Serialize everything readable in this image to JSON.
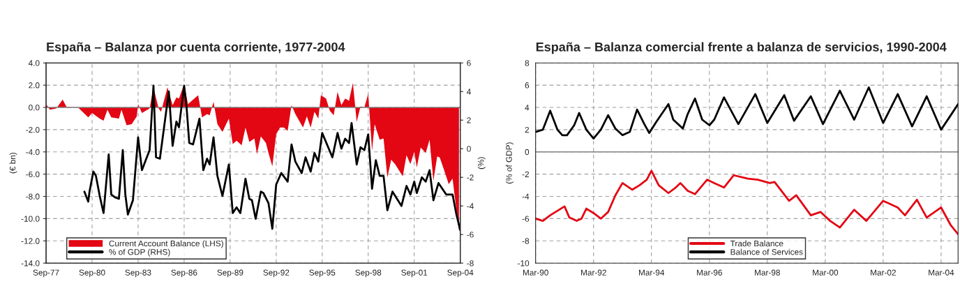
{
  "chart_data": [
    {
      "type": "area",
      "title": "España – Balanza por cuenta corriente, 1977-2004",
      "ylabel": "(€ bn)",
      "y2label": "(%)",
      "xlim": [
        "1977-09",
        "2004-09"
      ],
      "xticks": [
        {
          "value": "1977-09",
          "label": "Sep-77"
        },
        {
          "value": "1980-09",
          "label": "Sep-80"
        },
        {
          "value": "1983-09",
          "label": "Sep-83"
        },
        {
          "value": "1986-09",
          "label": "Sep-86"
        },
        {
          "value": "1989-09",
          "label": "Sep-89"
        },
        {
          "value": "1992-09",
          "label": "Sep-92"
        },
        {
          "value": "1995-09",
          "label": "Sep-95"
        },
        {
          "value": "1998-09",
          "label": "Sep-98"
        },
        {
          "value": "2001-09",
          "label": "Sep-01"
        },
        {
          "value": "2004-09",
          "label": "Sep-04"
        }
      ],
      "ylim": [
        -14,
        4
      ],
      "yticks": [
        {
          "value": -14,
          "label": "-14.0"
        },
        {
          "value": -12,
          "label": "-12.0"
        },
        {
          "value": -10,
          "label": "-10.0"
        },
        {
          "value": -8,
          "label": "-8.0"
        },
        {
          "value": -6,
          "label": "-6.0"
        },
        {
          "value": -4,
          "label": "-4.0"
        },
        {
          "value": -2,
          "label": "-2.0"
        },
        {
          "value": 0,
          "label": "0.0"
        },
        {
          "value": 2,
          "label": "2.0"
        },
        {
          "value": 4,
          "label": "4.0"
        }
      ],
      "y2lim": [
        -8,
        6
      ],
      "y2ticks": [
        -8,
        -6,
        -4,
        -2,
        0,
        2,
        4,
        6
      ],
      "grid": true,
      "legend": "bottom left",
      "ref_lines": [
        {
          "axis": "y",
          "value": 0,
          "color": "#808080"
        }
      ],
      "series": [
        {
          "name": "Current Account Balance (LHS)",
          "type": "area",
          "color": "#e30613",
          "x": [
            "1977-09",
            "1977-12",
            "1978-05",
            "1978-10",
            "1979-01",
            "1979-10",
            "1980-06",
            "1980-09",
            "1981-03",
            "1981-06",
            "1981-09",
            "1981-12",
            "1982-06",
            "1982-08",
            "1982-12",
            "1983-04",
            "1983-08",
            "1983-09",
            "1983-12",
            "1984-06",
            "1984-09",
            "1985-01",
            "1985-03",
            "1985-08",
            "1985-12",
            "1986-03",
            "1986-05",
            "1986-09",
            "1986-12",
            "1987-08",
            "1987-11",
            "1988-03",
            "1988-05",
            "1988-08",
            "1988-11",
            "1989-03",
            "1989-08",
            "1989-11",
            "1990-02",
            "1990-06",
            "1990-09",
            "1990-12",
            "1991-04",
            "1991-06",
            "1991-09",
            "1992-01",
            "1992-03",
            "1992-06",
            "1992-09",
            "1992-12",
            "1993-03",
            "1993-06",
            "1993-09",
            "1993-12",
            "1994-06",
            "1994-09",
            "1994-12",
            "1995-03",
            "1995-06",
            "1995-08",
            "1995-12",
            "1996-03",
            "1996-06",
            "1996-09",
            "1996-12",
            "1997-03",
            "1997-06",
            "1997-09",
            "1997-12",
            "1998-03",
            "1998-06",
            "1998-09",
            "1998-12",
            "1999-02",
            "1999-06",
            "1999-09",
            "1999-12",
            "2000-03",
            "2000-06",
            "2000-12",
            "2001-03",
            "2001-06",
            "2001-09",
            "2001-11",
            "2002-02",
            "2002-06",
            "2002-09",
            "2002-12",
            "2003-03",
            "2003-05",
            "2003-08",
            "2003-12",
            "2004-03",
            "2004-08"
          ],
          "values": [
            0.3,
            -0.2,
            -0.1,
            0.7,
            0.05,
            0,
            -0.9,
            -0.5,
            -1.0,
            -1.2,
            -0.2,
            -0.9,
            -1.0,
            -0.2,
            -1.6,
            -1.5,
            -0.8,
            0.3,
            -0.5,
            -0.1,
            1.8,
            -0.1,
            -0.4,
            1.8,
            0.2,
            0.9,
            0.8,
            2.1,
            0.3,
            1.1,
            -0.9,
            -0.6,
            -0.7,
            0.5,
            -1.5,
            -2.2,
            -1.0,
            -3.3,
            -3.0,
            -3.4,
            -1.8,
            -3.1,
            -2.8,
            -4.2,
            -2.6,
            -3.2,
            -4.1,
            -5.3,
            -2.4,
            -1.8,
            -1.8,
            -2.1,
            0.2,
            -0.6,
            -1.8,
            -0.8,
            -1.8,
            -0.4,
            -1.0,
            1.1,
            0.8,
            -0.3,
            -0.7,
            1.4,
            0.2,
            0.8,
            0.6,
            2.2,
            -1.3,
            0.1,
            0,
            1.2,
            -3.9,
            -1.5,
            -2.9,
            -2.8,
            -6.3,
            -4.7,
            -5.1,
            -6.2,
            -4.3,
            -5.1,
            -4.0,
            -5.4,
            -3.6,
            -4.1,
            -2.9,
            -6.6,
            -4.4,
            -4.5,
            -5.5,
            -6.9,
            -6.4,
            -11.1
          ]
        },
        {
          "name": "% of GDP (RHS)",
          "type": "line",
          "axis": "y2",
          "color": "#000000",
          "x": [
            "1980-03",
            "1980-06",
            "1980-07",
            "1980-10",
            "1980-12",
            "1981-03",
            "1981-06",
            "1981-10",
            "1981-12",
            "1982-03",
            "1982-06",
            "1982-09",
            "1982-11",
            "1983-01",
            "1983-05",
            "1983-09",
            "1983-12",
            "1984-03",
            "1984-06",
            "1984-09",
            "1984-11",
            "1985-02",
            "1985-09",
            "1985-12",
            "1986-03",
            "1986-05",
            "1986-09",
            "1986-11",
            "1987-01",
            "1987-04",
            "1987-09",
            "1987-12",
            "1988-03",
            "1988-05",
            "1988-08",
            "1988-11",
            "1989-03",
            "1989-08",
            "1989-11",
            "1990-02",
            "1990-05",
            "1990-09",
            "1990-12",
            "1991-02",
            "1991-05",
            "1991-09",
            "1991-11",
            "1992-03",
            "1992-06",
            "1992-09",
            "1993-01",
            "1993-06",
            "1993-09",
            "1993-12",
            "1994-05",
            "1994-08",
            "1994-12",
            "1995-03",
            "1995-06",
            "1995-09",
            "1996-05",
            "1996-09",
            "1996-12",
            "1997-03",
            "1997-06",
            "1997-08",
            "1997-12",
            "1998-03",
            "1998-06",
            "1998-09",
            "1998-12",
            "1999-03",
            "1999-06",
            "1999-09",
            "1999-12",
            "2000-04",
            "2000-11",
            "2001-03",
            "2001-06",
            "2001-09",
            "2001-11",
            "2002-03",
            "2002-06",
            "2002-09",
            "2002-12",
            "2003-04",
            "2003-10",
            "2004-03",
            "2004-06",
            "2004-09"
          ],
          "values": [
            -3.0,
            -3.7,
            -3.0,
            -1.6,
            -1.9,
            -3.3,
            -4.5,
            -0.4,
            -3.2,
            -3.4,
            -3.5,
            -0.1,
            -3.2,
            -4.6,
            -3.6,
            0.8,
            -1.5,
            -0.8,
            -0.1,
            4.4,
            -0.6,
            -0.7,
            4.0,
            0.2,
            1.9,
            1.5,
            4.4,
            2.8,
            0.4,
            0.3,
            2.1,
            -1.5,
            -0.7,
            -1.1,
            0.8,
            -1.9,
            -3.3,
            -1.1,
            -4.5,
            -4.1,
            -4.5,
            -2.1,
            -3.5,
            -3.6,
            -4.9,
            -3.0,
            -3.1,
            -3.8,
            -5.6,
            -2.5,
            -1.7,
            -2.3,
            0.3,
            -0.9,
            -1.7,
            -0.6,
            -1.6,
            -0.3,
            -0.9,
            1.1,
            -0.6,
            1.1,
            0,
            0.7,
            0.4,
            1.8,
            -1.1,
            0.1,
            -0.1,
            1.0,
            -2.8,
            -0.8,
            -1.9,
            -1.9,
            -4.3,
            -3.0,
            -4.0,
            -2.6,
            -3.2,
            -2.3,
            -3.1,
            -2.0,
            -2.3,
            -1.5,
            -3.6,
            -2.4,
            -3.2,
            -3.2,
            -4.6,
            -5.7
          ]
        }
      ]
    },
    {
      "type": "line",
      "title": "España – Balanza comercial frente a balanza de servicios, 1990-2004",
      "ylabel": "(% of GDP)",
      "xlim": [
        "1990-03",
        "2004-10"
      ],
      "xticks": [
        {
          "value": "1990-03",
          "label": "Mar-90"
        },
        {
          "value": "1992-03",
          "label": "Mar-92"
        },
        {
          "value": "1994-03",
          "label": "Mar-94"
        },
        {
          "value": "1996-03",
          "label": "Mar-96"
        },
        {
          "value": "1998-03",
          "label": "Mar-98"
        },
        {
          "value": "2000-03",
          "label": "Mar-00"
        },
        {
          "value": "2002-03",
          "label": "Mar-02"
        },
        {
          "value": "2004-03",
          "label": "Mar-04"
        }
      ],
      "ylim": [
        -10,
        8
      ],
      "yticks": [
        -10,
        -8,
        -6,
        -4,
        -2,
        0,
        2,
        4,
        6,
        8
      ],
      "grid": true,
      "legend": "bottom",
      "ref_lines": [
        {
          "axis": "y",
          "value": 0,
          "color": "#808080"
        }
      ],
      "series": [
        {
          "name": "Trade Balance",
          "color": "#e30613",
          "x": [
            "1990-03",
            "1990-06",
            "1990-09",
            "1991-03",
            "1991-05",
            "1991-08",
            "1991-10",
            "1991-12",
            "1992-03",
            "1992-06",
            "1992-09",
            "1992-12",
            "1993-03",
            "1993-07",
            "1993-10",
            "1994-01",
            "1994-03",
            "1994-06",
            "1994-10",
            "1995-01",
            "1995-03",
            "1995-06",
            "1995-09",
            "1996-02",
            "1996-05",
            "1996-09",
            "1997-01",
            "1997-07",
            "1997-11",
            "1998-04",
            "1998-06",
            "1998-12",
            "1999-03",
            "1999-09",
            "2000-01",
            "2000-05",
            "2000-09",
            "2001-03",
            "2001-08",
            "2002-03",
            "2002-09",
            "2002-12",
            "2003-05",
            "2003-09",
            "2004-03",
            "2004-07",
            "2004-10"
          ],
          "values": [
            -6.0,
            -6.2,
            -5.7,
            -4.9,
            -5.9,
            -6.2,
            -6.0,
            -5.1,
            -5.5,
            -6.0,
            -5.4,
            -3.9,
            -2.8,
            -3.4,
            -3.0,
            -2.5,
            -1.7,
            -3.0,
            -3.7,
            -3.2,
            -2.8,
            -3.5,
            -3.8,
            -2.5,
            -2.8,
            -3.2,
            -2.1,
            -2.4,
            -2.5,
            -2.8,
            -2.7,
            -4.4,
            -3.9,
            -5.7,
            -5.4,
            -6.2,
            -6.8,
            -5.2,
            -6.2,
            -4.4,
            -5.0,
            -5.7,
            -4.3,
            -5.9,
            -5.0,
            -6.6,
            -7.4
          ]
        },
        {
          "name": "Balance of Services",
          "color": "#000000",
          "x": [
            "1990-03",
            "1990-06",
            "1990-09",
            "1990-12",
            "1991-02",
            "1991-04",
            "1991-07",
            "1991-09",
            "1991-12",
            "1992-03",
            "1992-06",
            "1992-09",
            "1992-12",
            "1993-03",
            "1993-06",
            "1993-09",
            "1993-12",
            "1994-02",
            "1994-05",
            "1994-10",
            "1994-12",
            "1995-04",
            "1995-06",
            "1995-09",
            "1995-12",
            "1996-03",
            "1996-05",
            "1996-09",
            "1997-03",
            "1997-10",
            "1998-03",
            "1998-10",
            "1999-02",
            "1999-09",
            "2000-02",
            "2000-09",
            "2001-03",
            "2001-09",
            "2002-03",
            "2002-09",
            "2003-03",
            "2003-09",
            "2004-03",
            "2004-07",
            "2004-10"
          ],
          "values": [
            1.8,
            2.0,
            3.7,
            2.0,
            1.5,
            1.5,
            2.4,
            3.5,
            2.0,
            1.2,
            2.0,
            3.3,
            2.1,
            1.5,
            1.8,
            3.8,
            2.5,
            1.7,
            2.7,
            4.3,
            2.9,
            2.1,
            3.4,
            4.8,
            2.9,
            2.4,
            2.9,
            4.9,
            2.5,
            5.2,
            2.6,
            5.1,
            2.8,
            5.0,
            2.5,
            5.5,
            2.9,
            5.8,
            2.6,
            5.2,
            2.3,
            5.0,
            2.0,
            3.3,
            4.3
          ]
        }
      ]
    }
  ]
}
